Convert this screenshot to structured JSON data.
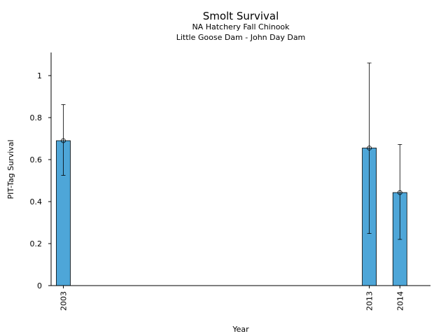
{
  "chart_data": {
    "type": "bar",
    "title": "Smolt Survival",
    "subtitle_lines": [
      "NA Hatchery Fall Chinook",
      "Little Goose Dam - John Day Dam"
    ],
    "xlabel": "Year",
    "ylabel": "PIT-Tag Survival",
    "xlim": [
      2002.6,
      2015
    ],
    "ylim": [
      0,
      1.11
    ],
    "yticks": [
      0,
      0.2,
      0.4,
      0.6,
      0.8,
      1
    ],
    "ytick_labels": [
      "0",
      "0.2",
      "0.4",
      "0.6",
      "0.8",
      "1"
    ],
    "bar_color": "#4ea6d8",
    "grid": false,
    "points": [
      {
        "year": 2003,
        "label": "2003",
        "value": 0.69,
        "lower": 0.525,
        "upper": 0.862
      },
      {
        "year": 2013,
        "label": "2013",
        "value": 0.655,
        "lower": 0.248,
        "upper": 1.06
      },
      {
        "year": 2014,
        "label": "2014",
        "value": 0.443,
        "lower": 0.22,
        "upper": 0.672
      }
    ]
  }
}
